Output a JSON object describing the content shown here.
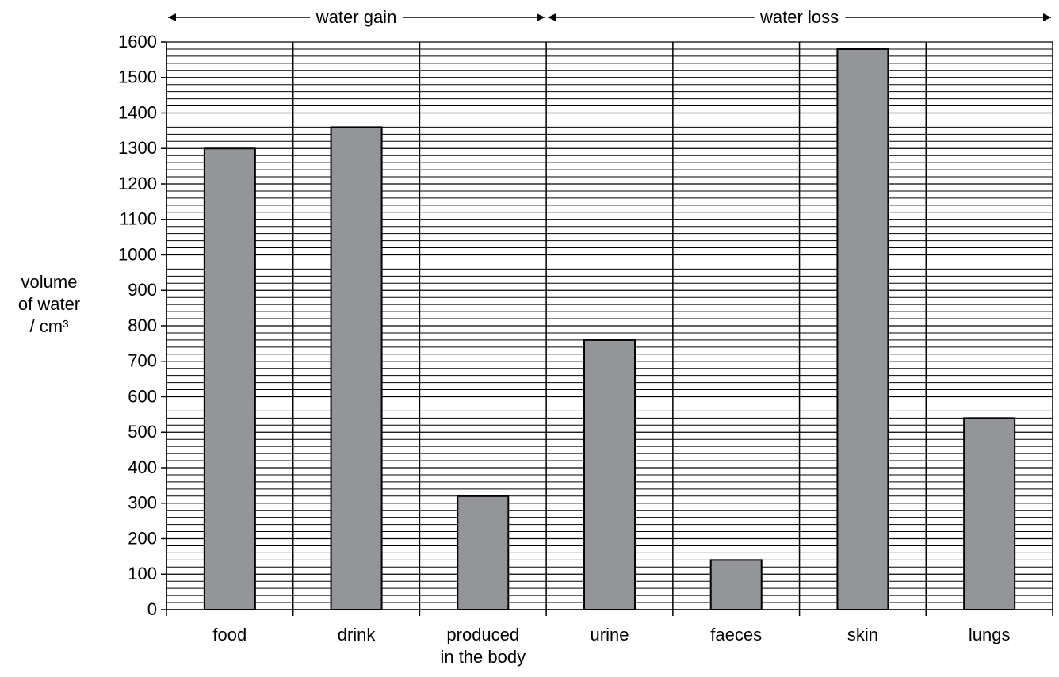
{
  "chart_data": {
    "type": "bar",
    "y_label": "volume\nof water\n/ cm³",
    "group_labels": [
      "water gain",
      "water loss"
    ],
    "categories": [
      "food",
      "drink",
      "produced\nin the body",
      "urine",
      "faeces",
      "skin",
      "lungs"
    ],
    "values": [
      1300,
      1360,
      320,
      760,
      140,
      1580,
      540
    ],
    "color": "#939598",
    "ylim": [
      0,
      1600
    ],
    "yticks": [
      0,
      100,
      200,
      300,
      400,
      500,
      600,
      700,
      800,
      900,
      1000,
      1100,
      1200,
      1300,
      1400,
      1500,
      1600
    ],
    "grid": true
  }
}
